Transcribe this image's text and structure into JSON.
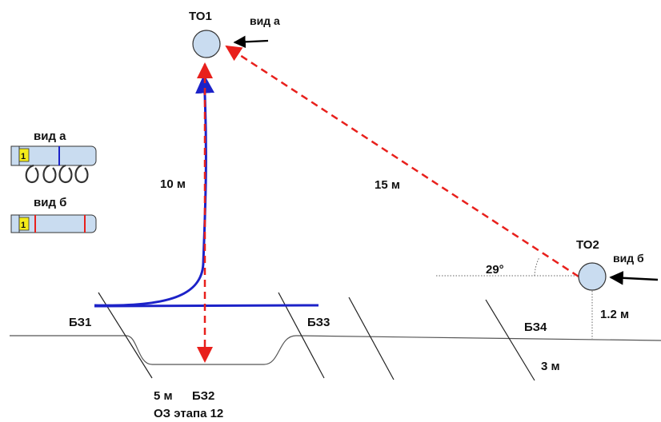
{
  "nodes": {
    "to1": "ТО1",
    "to2": "ТО2"
  },
  "views": {
    "view_a": "вид а",
    "view_b": "вид б",
    "legend_view_a": "вид а",
    "legend_view_b": "вид б",
    "rope_number_a": "1",
    "rope_number_b": "1"
  },
  "measures": {
    "vertical": "10 м",
    "diagonal": "15 м",
    "angle": "29°",
    "height_to2": "1.2 м",
    "width_bz4": "3 м",
    "width_bz2": "5 м"
  },
  "zones": {
    "bz1": "БЗ1",
    "bz2": "БЗ2",
    "bz3": "БЗ3",
    "bz4": "БЗ4"
  },
  "caption": "ОЗ этапа 12",
  "colors": {
    "rope_blue": "#1c22c8",
    "dash_red": "#e8201c",
    "circle_fill": "#c9dcf0",
    "legend_yellow": "#f4ec1a"
  }
}
